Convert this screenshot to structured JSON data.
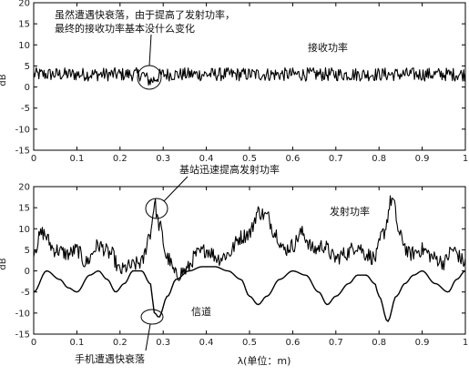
{
  "chart_data": [
    {
      "type": "line",
      "panel": "top",
      "ylabel": "dB",
      "xlabel": "",
      "xlim": [
        0,
        1
      ],
      "ylim": [
        -15,
        20
      ],
      "xticks": [
        "0",
        "0.1",
        "0.2",
        "0.3",
        "0.4",
        "0.5",
        "0.6",
        "0.7",
        "0.8",
        "0.9",
        "1"
      ],
      "yticks": [
        "20",
        "15",
        "10",
        "5",
        "0",
        "-5",
        "-10",
        "-15"
      ],
      "grid": false,
      "series": [
        {
          "name": "接收功率",
          "x": [
            0,
            0.05,
            0.1,
            0.15,
            0.2,
            0.25,
            0.27,
            0.3,
            0.35,
            0.4,
            0.45,
            0.5,
            0.55,
            0.6,
            0.65,
            0.7,
            0.75,
            0.8,
            0.85,
            0.9,
            0.95,
            1
          ],
          "y": [
            3,
            3,
            3,
            3,
            3,
            3,
            1.5,
            3,
            3,
            3,
            3,
            3,
            3,
            3,
            3,
            3,
            3,
            3,
            3,
            3,
            3,
            3
          ]
        }
      ],
      "annotations": [
        {
          "text": "虽然遭遇快衰落，由于提高了发射功率，",
          "x": 0.05,
          "y": 18
        },
        {
          "text": "最终的接收功率基本没什么变化",
          "x": 0.05,
          "y": 15
        },
        {
          "text": "接收功率",
          "x": 0.62,
          "y": 9
        }
      ]
    },
    {
      "type": "line",
      "panel": "bottom",
      "ylabel": "dB",
      "xlabel": "λ(单位：m)",
      "xlim": [
        0,
        1
      ],
      "ylim": [
        -15,
        20
      ],
      "xticks": [
        "0",
        "0.1",
        "0.2",
        "0.3",
        "0.4",
        "0.5",
        "0.6",
        "0.7",
        "0.8",
        "0.9",
        "1"
      ],
      "yticks": [
        "20",
        "15",
        "10",
        "5",
        "0",
        "-5",
        "-10",
        "-15"
      ],
      "grid": false,
      "series": [
        {
          "name": "发射功率",
          "x": [
            0,
            0.02,
            0.05,
            0.08,
            0.1,
            0.12,
            0.15,
            0.18,
            0.2,
            0.22,
            0.25,
            0.27,
            0.28,
            0.29,
            0.31,
            0.33,
            0.35,
            0.38,
            0.4,
            0.43,
            0.45,
            0.48,
            0.5,
            0.52,
            0.54,
            0.56,
            0.58,
            0.6,
            0.62,
            0.65,
            0.67,
            0.7,
            0.72,
            0.75,
            0.77,
            0.79,
            0.81,
            0.83,
            0.85,
            0.87,
            0.9,
            0.93,
            0.95,
            0.97,
            1
          ],
          "y": [
            5,
            9,
            5,
            4,
            5,
            2,
            6,
            4,
            0,
            1,
            2,
            9,
            16,
            11,
            3,
            -1,
            0,
            4,
            5,
            3,
            4,
            8,
            9,
            14,
            13,
            9,
            5,
            6,
            9,
            5,
            6,
            3,
            4,
            6,
            4,
            3,
            9,
            17,
            8,
            4,
            5,
            3,
            2,
            5,
            2
          ]
        },
        {
          "name": "信道",
          "x": [
            0,
            0.03,
            0.06,
            0.08,
            0.1,
            0.13,
            0.15,
            0.17,
            0.19,
            0.21,
            0.23,
            0.25,
            0.27,
            0.28,
            0.29,
            0.31,
            0.33,
            0.36,
            0.39,
            0.42,
            0.45,
            0.48,
            0.5,
            0.52,
            0.54,
            0.57,
            0.6,
            0.63,
            0.66,
            0.68,
            0.7,
            0.73,
            0.75,
            0.77,
            0.79,
            0.8,
            0.82,
            0.84,
            0.86,
            0.88,
            0.9,
            0.93,
            0.96,
            0.98,
            1
          ],
          "y": [
            -5,
            0,
            -2,
            -4,
            -5,
            -1,
            0,
            -2,
            -5,
            -3,
            0,
            0,
            -3,
            -10,
            -11,
            -6,
            -2,
            0,
            1,
            1,
            0,
            -2,
            -6,
            -8,
            -6,
            -2,
            0,
            -1,
            -5,
            -8,
            -6,
            -3,
            -1,
            -1,
            -3,
            -6,
            -12,
            -6,
            -3,
            -1,
            0,
            -3,
            -5,
            -2,
            0
          ]
        }
      ],
      "annotations": [
        {
          "text": "基站迅速提高发射功率",
          "x": 0.33,
          "y": 25
        },
        {
          "text": "发射功率",
          "x": 0.68,
          "y": 13
        },
        {
          "text": "信道",
          "x": 0.37,
          "y": -8
        },
        {
          "text": "手机遭遇快衰落",
          "x": 0.09,
          "y": -21
        }
      ]
    }
  ]
}
